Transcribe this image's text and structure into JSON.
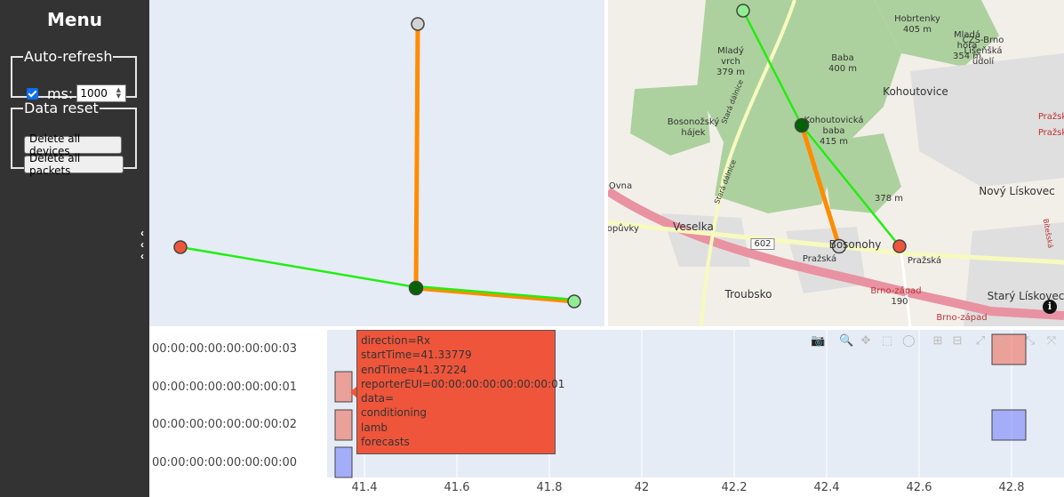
{
  "sidebar": {
    "title": "Menu",
    "auto_refresh": {
      "legend": "Auto-refresh",
      "checked": true,
      "ms_label": "ms:",
      "ms_value": "1000"
    },
    "data_reset": {
      "legend": "Data reset",
      "delete_devices": "Delete all devices",
      "delete_packets": "Delete all packets"
    }
  },
  "colors": {
    "orange": "#ff8c00",
    "green": "#22ee11",
    "node_dark": "#006400",
    "node_light": "#90ee90",
    "node_red": "#ef553b",
    "node_grey": "#d3d3d3"
  },
  "map": {
    "labels": [
      "Hobrtenky",
      "405 m",
      "Mladá",
      "hora",
      "354 m",
      "ČZS-Brno",
      "Líšeňšká",
      "údolí",
      "Mladý",
      "vrch",
      "379 m",
      "Baba",
      "400 m",
      "Kohoutovice",
      "Kohoutovická",
      "baba",
      "415 m",
      "Bosonožský",
      "hájek",
      "378 m",
      "Nový Lískovec",
      "Veselka",
      "Popůvky",
      "602",
      "Bosonohy",
      "Pražská",
      "Pražská",
      "Troubsko",
      "Starý Lískovec",
      "Brno-západ",
      "190",
      "Brno-západ",
      "Pražsk",
      "Pražsk",
      "Ovna",
      "Stará dálnice",
      "Stará dálnice",
      "Bítešská"
    ],
    "info": "i"
  },
  "timeline": {
    "y_labels": [
      "00:00:00:00:00:00:00:03",
      "00:00:00:00:00:00:00:01",
      "00:00:00:00:00:00:00:02",
      "00:00:00:00:00:00:00:00"
    ],
    "x_ticks": [
      "41.4",
      "41.6",
      "41.8",
      "42",
      "42.2",
      "42.4",
      "42.6",
      "42.8"
    ],
    "tooltip": [
      "direction=Rx",
      "startTime=41.33779",
      "endTime=41.37224",
      "reporterEUI=00:00:00:00:00:00:00:01",
      "data=",
      "conditioning",
      "lamb",
      "forecasts"
    ],
    "modebar": [
      "camera-icon",
      "zoom-icon",
      "pan-icon",
      "box-select-icon",
      "lasso-icon",
      "zoom-in-icon",
      "zoom-out-icon",
      "autoscale-icon",
      "home-icon",
      "spike-icon",
      "compare-icon"
    ]
  }
}
